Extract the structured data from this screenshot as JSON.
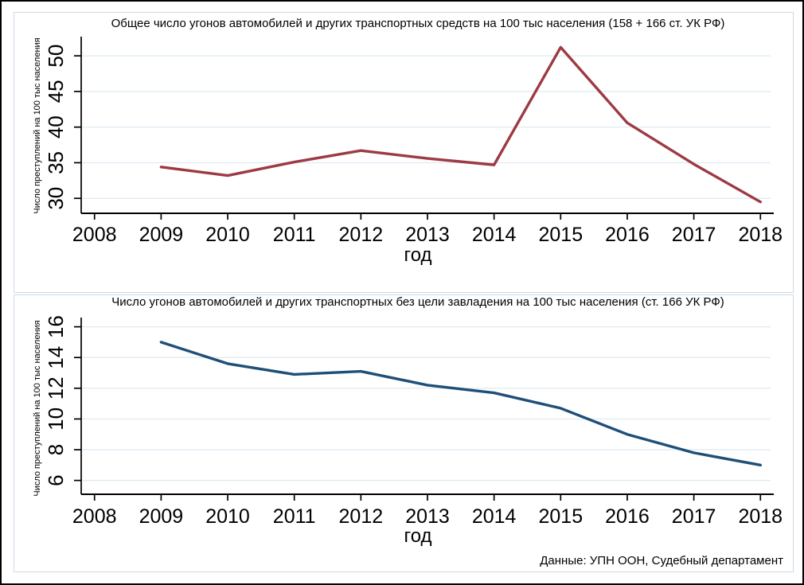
{
  "figure": {
    "source_note": "Данные: УПН ООН, Судебный департамент"
  },
  "chart_data": [
    {
      "type": "line",
      "title": "Общее число угонов автомобилей и других транспортных средств  на 100 тыс населения (158 + 166 ст. УК РФ)",
      "xlabel": "год",
      "ylabel": "Число преступлений на 100 тыс населения",
      "x": [
        2009,
        2010,
        2011,
        2012,
        2013,
        2014,
        2015,
        2016,
        2017,
        2018
      ],
      "values": [
        34.4,
        33.2,
        35.1,
        36.7,
        35.6,
        34.7,
        51.2,
        40.6,
        34.8,
        29.5
      ],
      "x_ticks": [
        2008,
        2009,
        2010,
        2011,
        2012,
        2013,
        2014,
        2015,
        2016,
        2017,
        2018
      ],
      "y_ticks": [
        30,
        35,
        40,
        45,
        50
      ],
      "xlim": [
        2007.8,
        2018.2
      ],
      "ylim": [
        27.9,
        52.7
      ],
      "grid": true,
      "legend": "none",
      "line_color": "#9d3a43"
    },
    {
      "type": "line",
      "title": "Число угонов автомобилей и других транспортных без цели завладения на 100 тыс населения  (ст. 166 УК РФ)",
      "xlabel": "год",
      "ylabel": "Число преступлений на 100 тыс населения",
      "x": [
        2009,
        2010,
        2011,
        2012,
        2013,
        2014,
        2015,
        2016,
        2017,
        2018
      ],
      "values": [
        15.0,
        13.6,
        12.9,
        13.1,
        12.2,
        11.7,
        10.7,
        9.0,
        7.8,
        7.0
      ],
      "x_ticks": [
        2008,
        2009,
        2010,
        2011,
        2012,
        2013,
        2014,
        2015,
        2016,
        2017,
        2018
      ],
      "y_ticks": [
        6,
        8,
        10,
        12,
        14,
        16
      ],
      "xlim": [
        2007.8,
        2018.2
      ],
      "ylim": [
        5.1,
        16.6
      ],
      "grid": true,
      "legend": "none",
      "line_color": "#1e4f78"
    }
  ],
  "colors": {
    "total_line": "#9d3a43",
    "joyriding_line": "#1e4f78",
    "gridline": "#e1ecf3",
    "panel_border": "#ccdbe5",
    "axis": "#000000"
  }
}
